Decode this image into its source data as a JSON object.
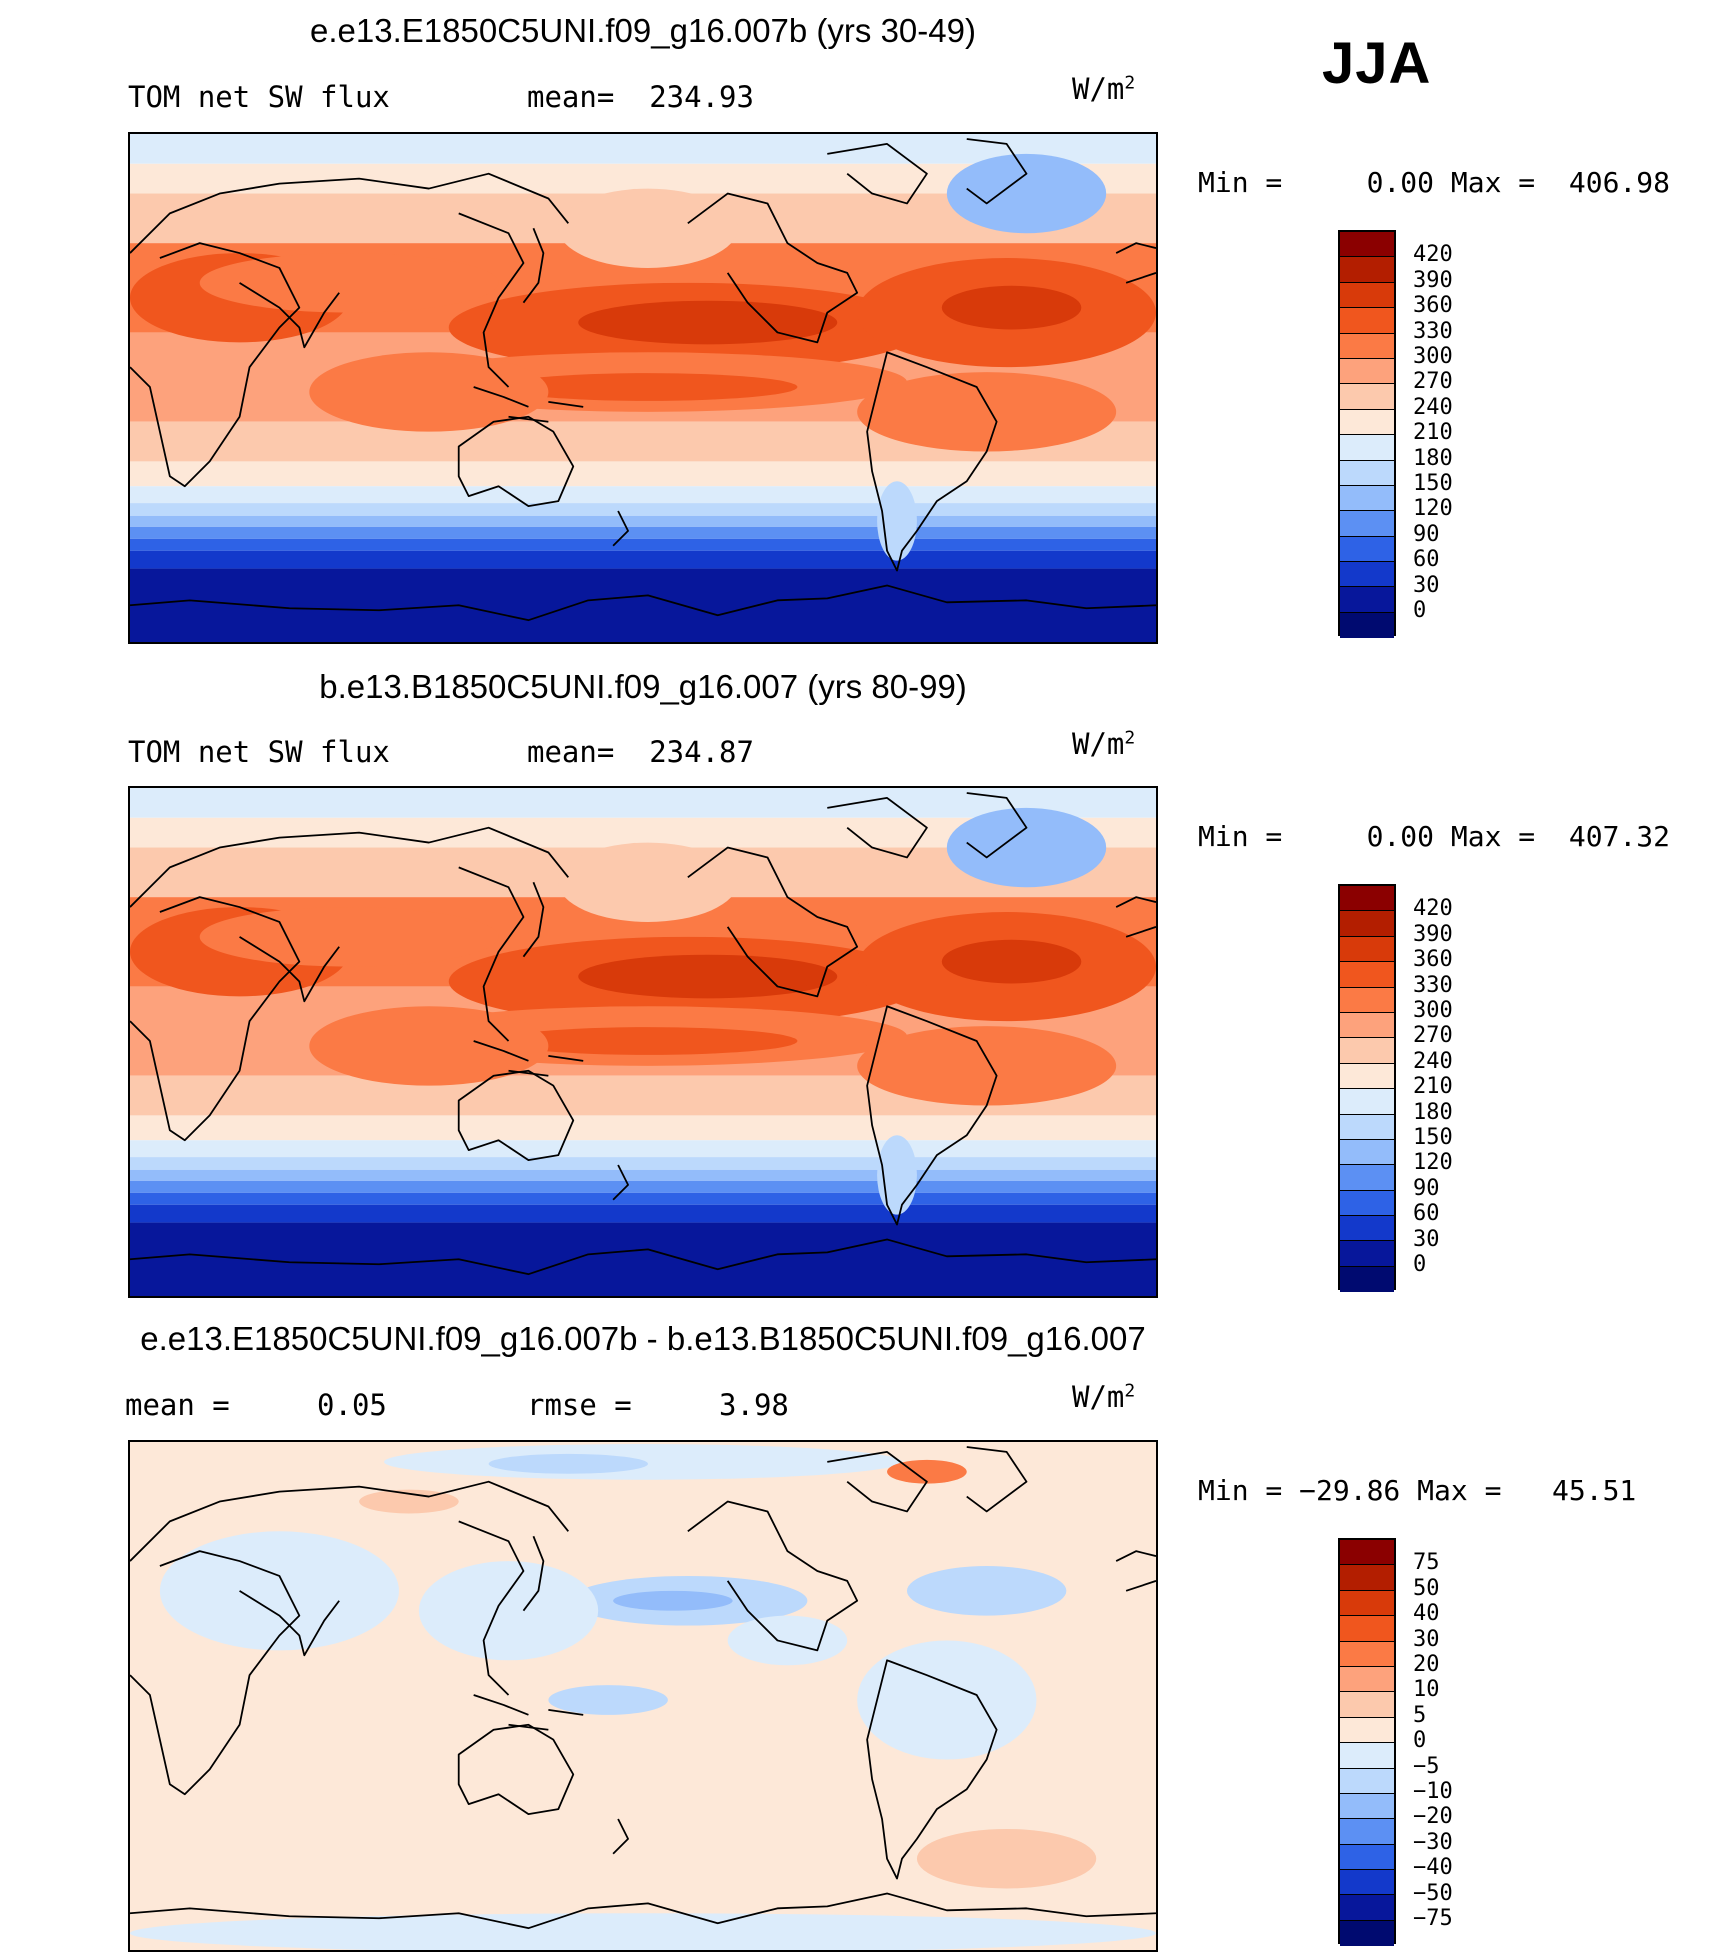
{
  "season": "JJA",
  "panels": [
    {
      "title": "e.e13.E1850C5UNI.f09_g16.007b (yrs 30-49)",
      "left_label": "TOM net SW flux",
      "mid_label": "mean=  234.93",
      "units": "W/m",
      "units_sup": "2",
      "minmax": "Min =     0.00 Max =  406.98",
      "colorbar_labels": [
        "420",
        "390",
        "360",
        "330",
        "300",
        "270",
        "240",
        "210",
        "180",
        "150",
        "120",
        "90",
        "60",
        "30",
        "0"
      ],
      "colorbar_colors": [
        "#8b0000",
        "#b31e00",
        "#d83a0a",
        "#f0561e",
        "#fb7a45",
        "#fda27c",
        "#fcc9ad",
        "#fde8d8",
        "#dcecfb",
        "#bcd9fc",
        "#93bcfa",
        "#5c90f3",
        "#2e62e6",
        "#1339cb",
        "#07179b",
        "#000a70"
      ],
      "field": "sw"
    },
    {
      "title": "b.e13.B1850C5UNI.f09_g16.007 (yrs 80-99)",
      "left_label": "TOM net SW flux",
      "mid_label": "mean=  234.87",
      "units": "W/m",
      "units_sup": "2",
      "minmax": "Min =     0.00 Max =  407.32",
      "colorbar_labels": [
        "420",
        "390",
        "360",
        "330",
        "300",
        "270",
        "240",
        "210",
        "180",
        "150",
        "120",
        "90",
        "60",
        "30",
        "0"
      ],
      "colorbar_colors": [
        "#8b0000",
        "#b31e00",
        "#d83a0a",
        "#f0561e",
        "#fb7a45",
        "#fda27c",
        "#fcc9ad",
        "#fde8d8",
        "#dcecfb",
        "#bcd9fc",
        "#93bcfa",
        "#5c90f3",
        "#2e62e6",
        "#1339cb",
        "#07179b",
        "#000a70"
      ],
      "field": "sw"
    },
    {
      "title": "e.e13.E1850C5UNI.f09_g16.007b - b.e13.B1850C5UNI.f09_g16.007",
      "left_label": "mean =     0.05",
      "mid_label": "rmse =     3.98",
      "units": "W/m",
      "units_sup": "2",
      "minmax": "Min = −29.86 Max =   45.51",
      "colorbar_labels": [
        "75",
        "50",
        "40",
        "30",
        "20",
        "10",
        "5",
        "0",
        "−5",
        "−10",
        "−20",
        "−30",
        "−40",
        "−50",
        "−75"
      ],
      "colorbar_colors": [
        "#8b0000",
        "#b31e00",
        "#d83a0a",
        "#f0561e",
        "#fb7a45",
        "#fda27c",
        "#fcc9ad",
        "#fde8d8",
        "#dcecfb",
        "#bcd9fc",
        "#93bcfa",
        "#5c90f3",
        "#2e62e6",
        "#1339cb",
        "#07179b",
        "#000a70"
      ],
      "field": "diff"
    }
  ]
}
